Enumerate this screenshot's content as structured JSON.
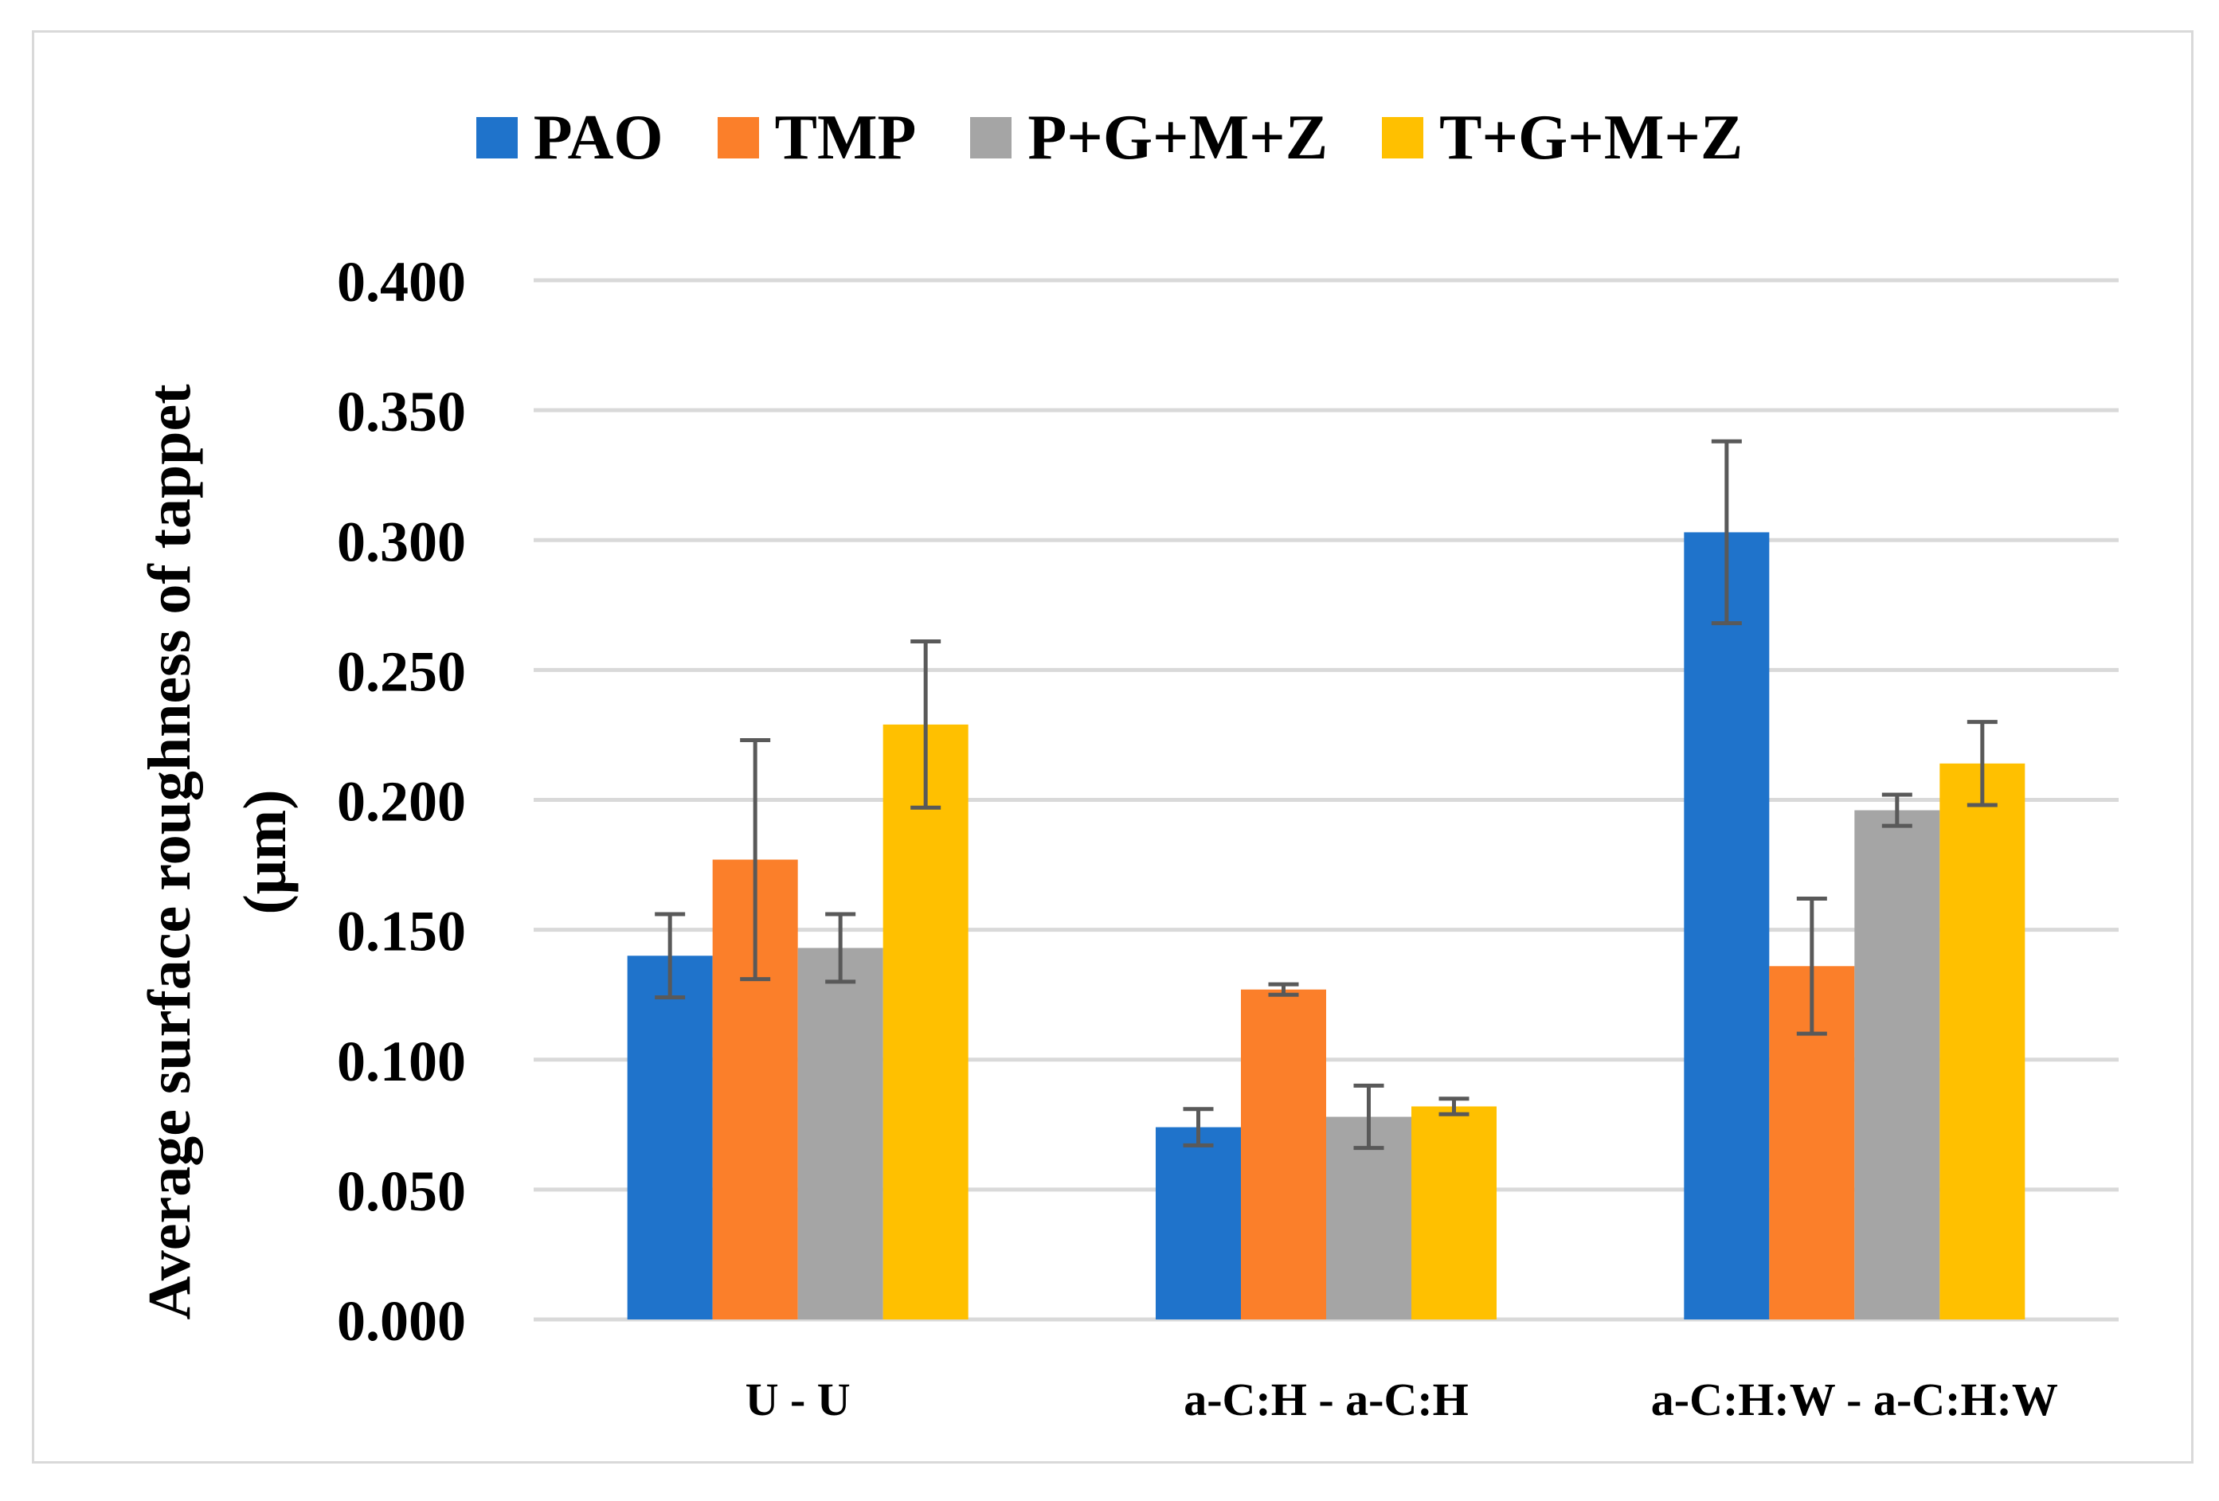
{
  "chart_data": {
    "type": "bar",
    "title": "",
    "xlabel": "",
    "ylabel_line1": "Average surface roughness of tappet",
    "ylabel_line2": "(μm)",
    "ylim": [
      0,
      0.4
    ],
    "yticks": [
      0.0,
      0.05,
      0.1,
      0.15,
      0.2,
      0.25,
      0.3,
      0.35,
      0.4
    ],
    "ytick_labels": [
      "0.000",
      "0.050",
      "0.100",
      "0.150",
      "0.200",
      "0.250",
      "0.300",
      "0.350",
      "0.400"
    ],
    "grid": true,
    "legend_position": "top-center",
    "categories": [
      "U - U",
      "a-C:H - a-C:H",
      "a-C:H:W - a-C:H:W"
    ],
    "series": [
      {
        "name": "PAO",
        "color": "#1f73cb",
        "values": [
          0.14,
          0.074,
          0.303
        ],
        "errors": [
          0.016,
          0.007,
          0.035
        ]
      },
      {
        "name": "TMP",
        "color": "#fb7f2a",
        "values": [
          0.177,
          0.127,
          0.136
        ],
        "errors": [
          0.046,
          0.002,
          0.026
        ]
      },
      {
        "name": "P+G+M+Z",
        "color": "#a5a5a5",
        "values": [
          0.143,
          0.078,
          0.196
        ],
        "errors": [
          0.013,
          0.012,
          0.006
        ]
      },
      {
        "name": "T+G+M+Z",
        "color": "#ffc000",
        "values": [
          0.229,
          0.082,
          0.214
        ],
        "errors": [
          0.032,
          0.003,
          0.016
        ]
      }
    ]
  }
}
